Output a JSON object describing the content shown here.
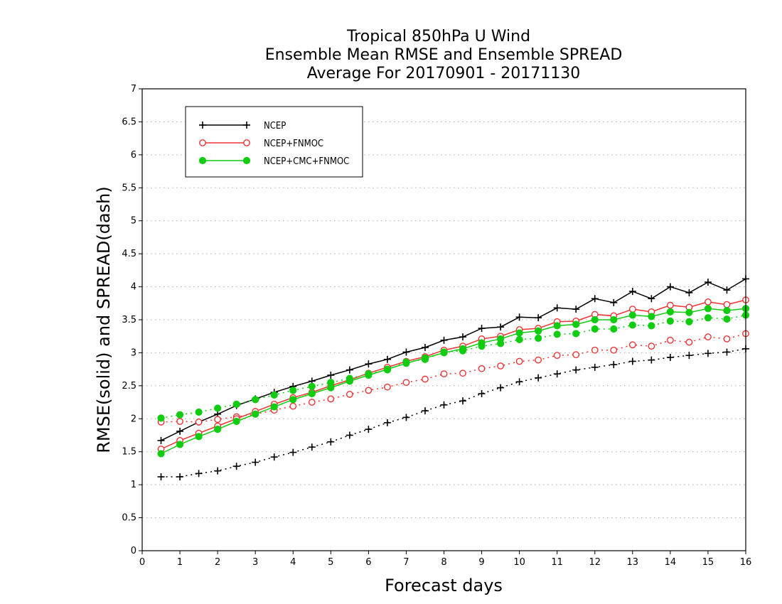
{
  "chart_data": {
    "type": "line",
    "title_lines": [
      "Tropical 850hPa U Wind",
      "Ensemble Mean RMSE and Ensemble SPREAD",
      "Average For 20170901 - 20171130"
    ],
    "xlabel": "Forecast days",
    "ylabel": "RMSE(solid) and SPREAD(dash)",
    "xlim": [
      0,
      16
    ],
    "ylim": [
      0,
      7
    ],
    "xticks": [
      0,
      1,
      2,
      3,
      4,
      5,
      6,
      7,
      8,
      9,
      10,
      11,
      12,
      13,
      14,
      15,
      16
    ],
    "yticks": [
      0,
      0.5,
      1,
      1.5,
      2,
      2.5,
      3,
      3.5,
      4,
      4.5,
      5,
      5.5,
      6,
      6.5,
      7
    ],
    "grid": "horizontal dotted",
    "legend_position": "top-left",
    "x": [
      0.5,
      1,
      1.5,
      2,
      2.5,
      3,
      3.5,
      4,
      4.5,
      5,
      5.5,
      6,
      6.5,
      7,
      7.5,
      8,
      8.5,
      9,
      9.5,
      10,
      10.5,
      11,
      11.5,
      12,
      12.5,
      13,
      13.5,
      14,
      14.5,
      15,
      15.5,
      16
    ],
    "series": [
      {
        "name": "NCEP",
        "color": "#000000",
        "marker": "plus",
        "rmse": [
          1.67,
          1.81,
          1.95,
          2.07,
          2.2,
          2.3,
          2.4,
          2.49,
          2.57,
          2.66,
          2.74,
          2.83,
          2.9,
          3.01,
          3.08,
          3.19,
          3.24,
          3.37,
          3.39,
          3.54,
          3.53,
          3.68,
          3.66,
          3.82,
          3.76,
          3.93,
          3.82,
          4.0,
          3.91,
          4.07,
          3.95,
          4.12
        ],
        "spread": [
          1.12,
          1.12,
          1.17,
          1.21,
          1.28,
          1.34,
          1.42,
          1.49,
          1.57,
          1.65,
          1.75,
          1.84,
          1.94,
          2.02,
          2.12,
          2.21,
          2.27,
          2.38,
          2.47,
          2.56,
          2.62,
          2.68,
          2.74,
          2.78,
          2.82,
          2.87,
          2.89,
          2.93,
          2.96,
          2.99,
          3.01,
          3.06
        ]
      },
      {
        "name": "NCEP+FNMOC",
        "color": "#ee3333",
        "marker": "open-circle",
        "rmse": [
          1.54,
          1.67,
          1.78,
          1.89,
          2.0,
          2.11,
          2.22,
          2.32,
          2.4,
          2.5,
          2.59,
          2.69,
          2.78,
          2.87,
          2.94,
          3.04,
          3.1,
          3.21,
          3.25,
          3.35,
          3.37,
          3.47,
          3.48,
          3.58,
          3.56,
          3.66,
          3.62,
          3.72,
          3.69,
          3.77,
          3.73,
          3.8
        ],
        "spread": [
          1.95,
          1.96,
          1.95,
          1.99,
          2.03,
          2.07,
          2.13,
          2.19,
          2.25,
          2.3,
          2.37,
          2.43,
          2.48,
          2.55,
          2.6,
          2.68,
          2.69,
          2.76,
          2.8,
          2.87,
          2.89,
          2.96,
          2.97,
          3.04,
          3.04,
          3.12,
          3.1,
          3.19,
          3.16,
          3.24,
          3.21,
          3.29
        ]
      },
      {
        "name": "NCEP+CMC+FNMOC",
        "color": "#11cc11",
        "marker": "filled-circle",
        "rmse": [
          1.47,
          1.61,
          1.73,
          1.84,
          1.96,
          2.07,
          2.18,
          2.29,
          2.38,
          2.47,
          2.57,
          2.66,
          2.75,
          2.84,
          2.92,
          3.0,
          3.06,
          3.15,
          3.21,
          3.3,
          3.33,
          3.41,
          3.43,
          3.5,
          3.5,
          3.57,
          3.55,
          3.62,
          3.61,
          3.67,
          3.64,
          3.67
        ],
        "spread": [
          2.01,
          2.06,
          2.1,
          2.16,
          2.22,
          2.29,
          2.36,
          2.43,
          2.49,
          2.55,
          2.61,
          2.68,
          2.74,
          2.86,
          2.9,
          3.01,
          3.03,
          3.1,
          3.14,
          3.2,
          3.22,
          3.28,
          3.29,
          3.36,
          3.36,
          3.42,
          3.41,
          3.48,
          3.47,
          3.53,
          3.51,
          3.57
        ]
      }
    ]
  }
}
